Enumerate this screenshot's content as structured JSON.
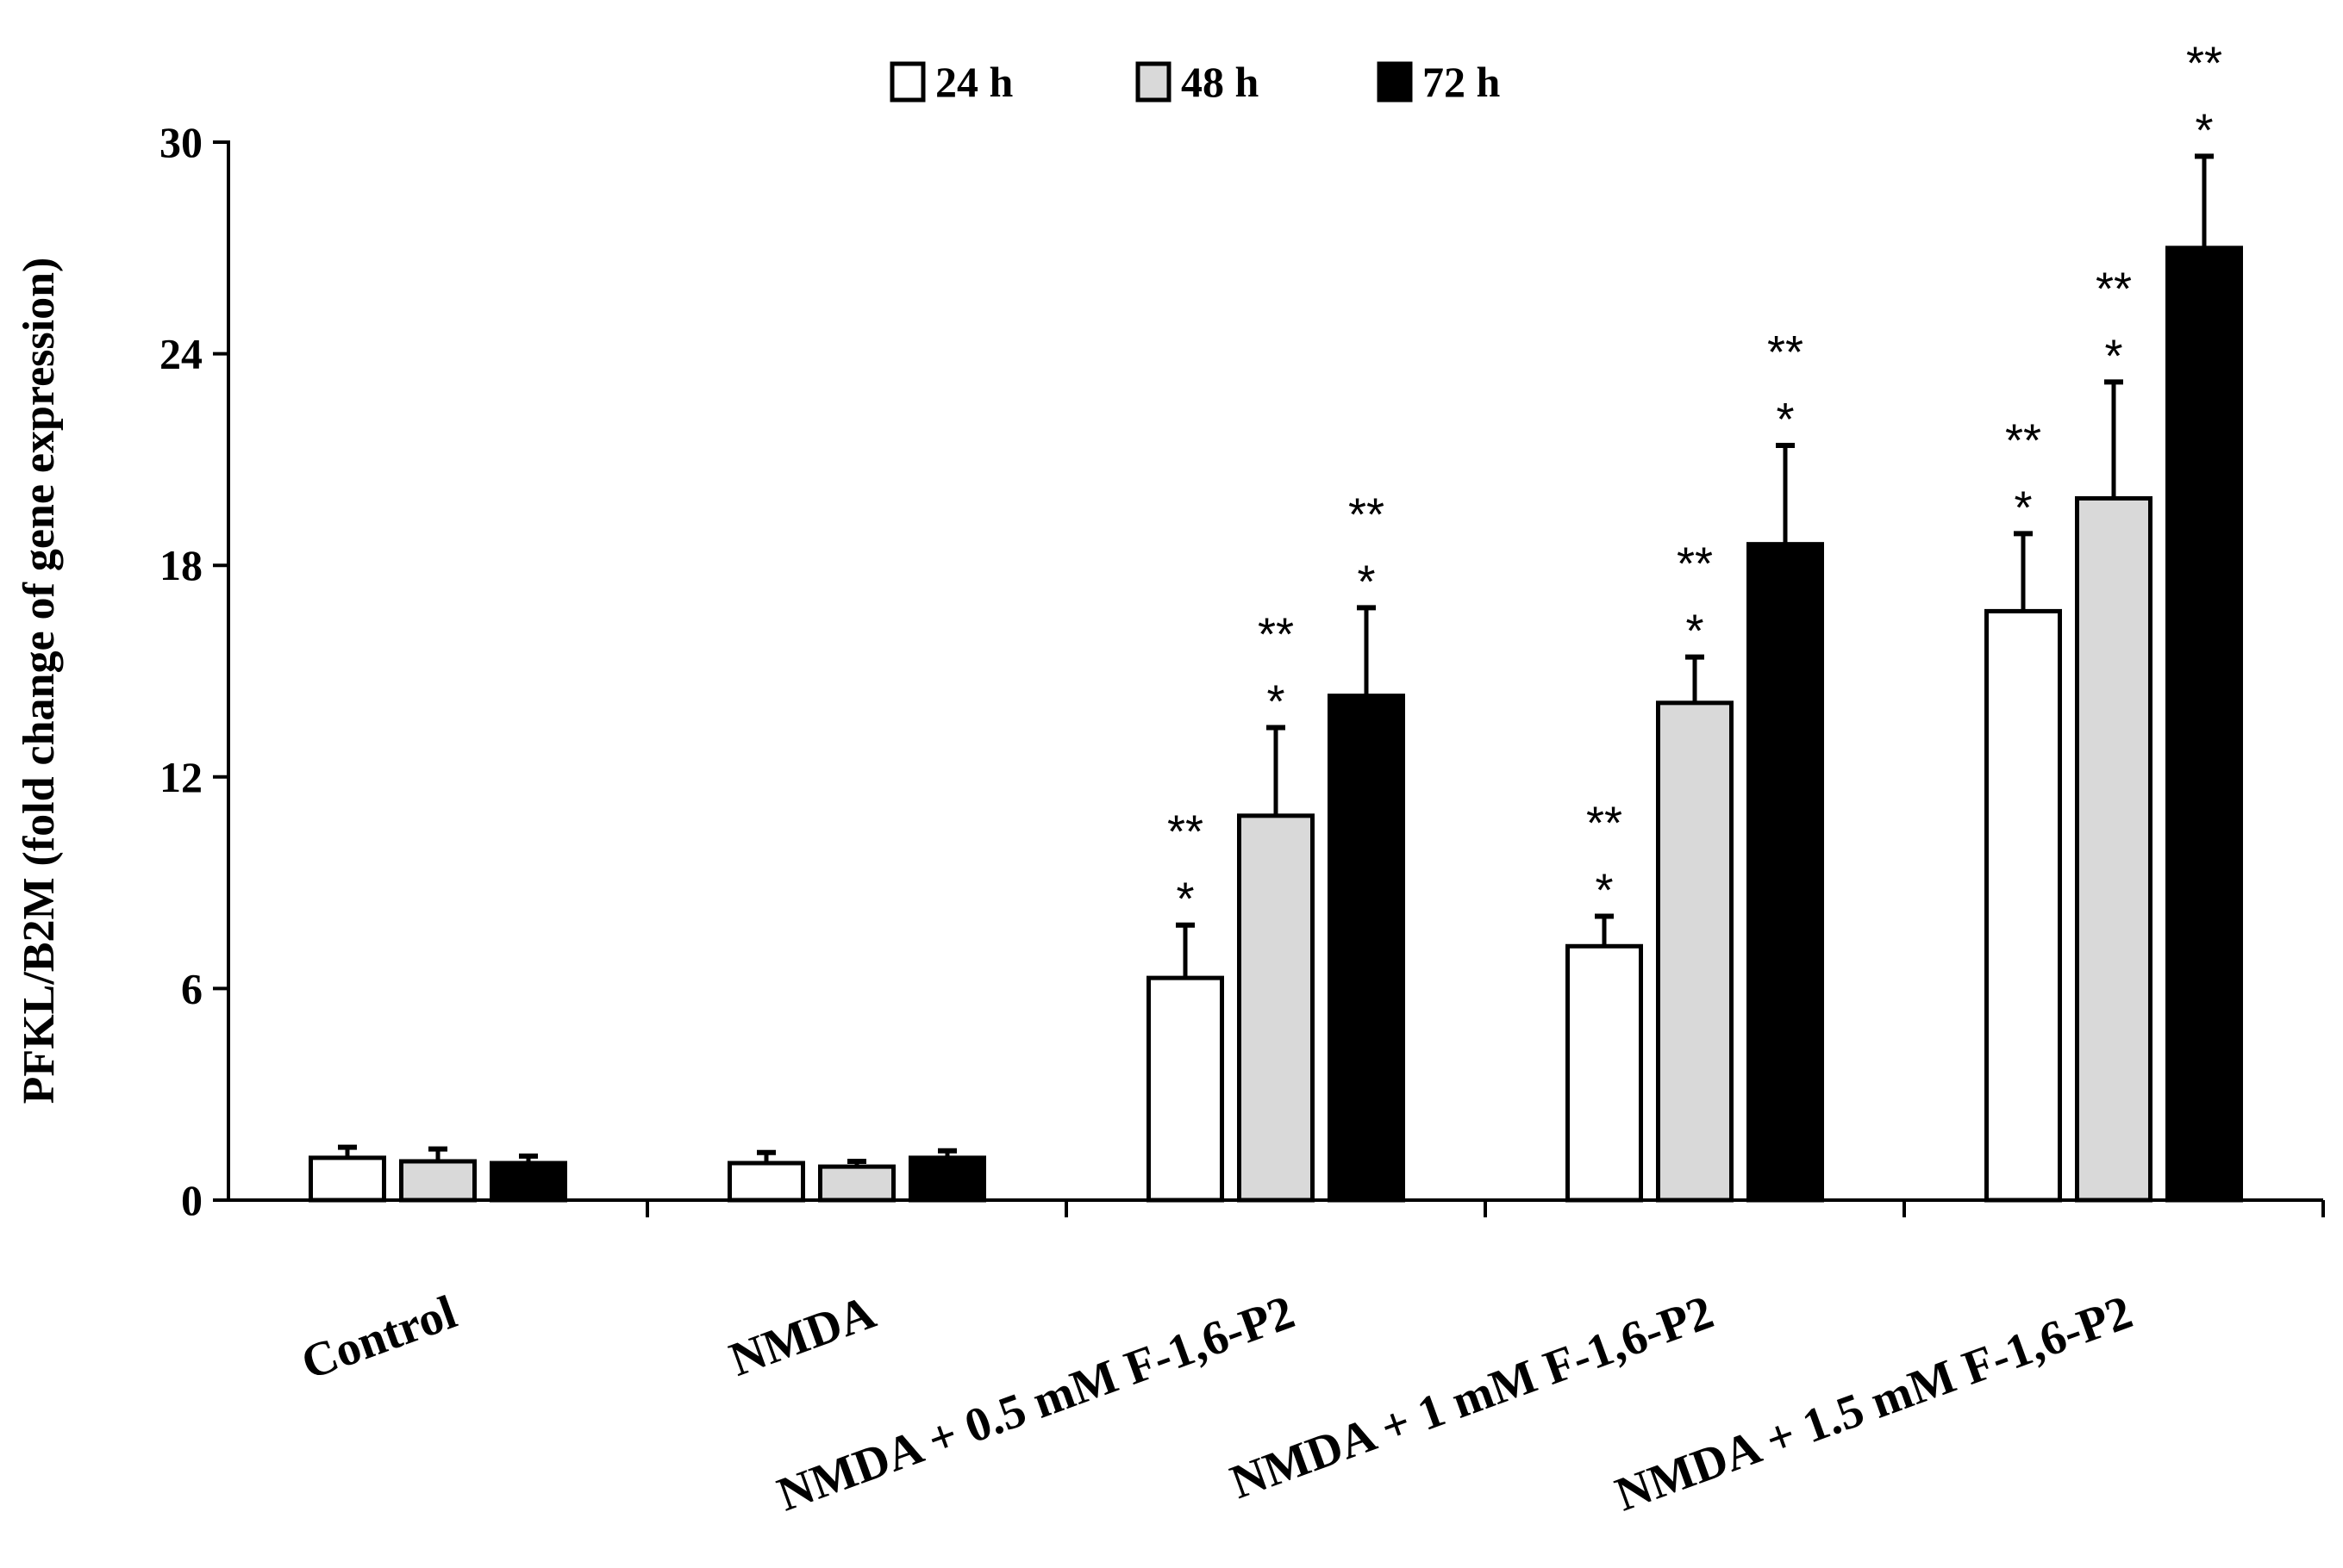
{
  "chart_data": {
    "type": "bar",
    "title": "",
    "xlabel": "",
    "ylabel": "PFKL/B2M (fold change of gene expression)",
    "ylim": [
      0,
      30
    ],
    "yticks": [
      "0",
      "6",
      "12",
      "18",
      "24",
      "30"
    ],
    "grid": false,
    "legend_position": "top",
    "categories": [
      "Control",
      "NMDA",
      "NMDA + 0.5 mM F-1,6-P2",
      "NMDA + 1 mM F-1,6-P2",
      "NMDA + 1.5 mM F-1,6-P2"
    ],
    "series": [
      {
        "name": "24 h",
        "color": "#ffffff",
        "values": [
          1.2,
          1.05,
          6.3,
          7.2,
          16.7
        ],
        "errors": [
          0.3,
          0.3,
          1.5,
          0.85,
          2.2
        ],
        "annotations": [
          [
            "",
            ""
          ],
          [
            "",
            ""
          ],
          [
            "*",
            "**"
          ],
          [
            "*",
            "**"
          ],
          [
            "*",
            "**"
          ]
        ]
      },
      {
        "name": "48 h",
        "color": "#d9d9d9",
        "values": [
          1.1,
          0.95,
          10.9,
          14.1,
          19.9
        ],
        "errors": [
          0.35,
          0.15,
          2.5,
          1.3,
          3.3
        ],
        "annotations": [
          [
            "",
            ""
          ],
          [
            "",
            ""
          ],
          [
            "*",
            "**"
          ],
          [
            "*",
            "**"
          ],
          [
            "*",
            "**"
          ]
        ]
      },
      {
        "name": "72 h",
        "color": "#000000",
        "values": [
          1.05,
          1.2,
          14.3,
          18.6,
          27.0
        ],
        "errors": [
          0.2,
          0.2,
          2.5,
          2.8,
          2.6
        ],
        "annotations": [
          [
            "",
            ""
          ],
          [
            "",
            ""
          ],
          [
            "*",
            "**"
          ],
          [
            "*",
            "**"
          ],
          [
            "*",
            "**"
          ]
        ]
      }
    ]
  }
}
